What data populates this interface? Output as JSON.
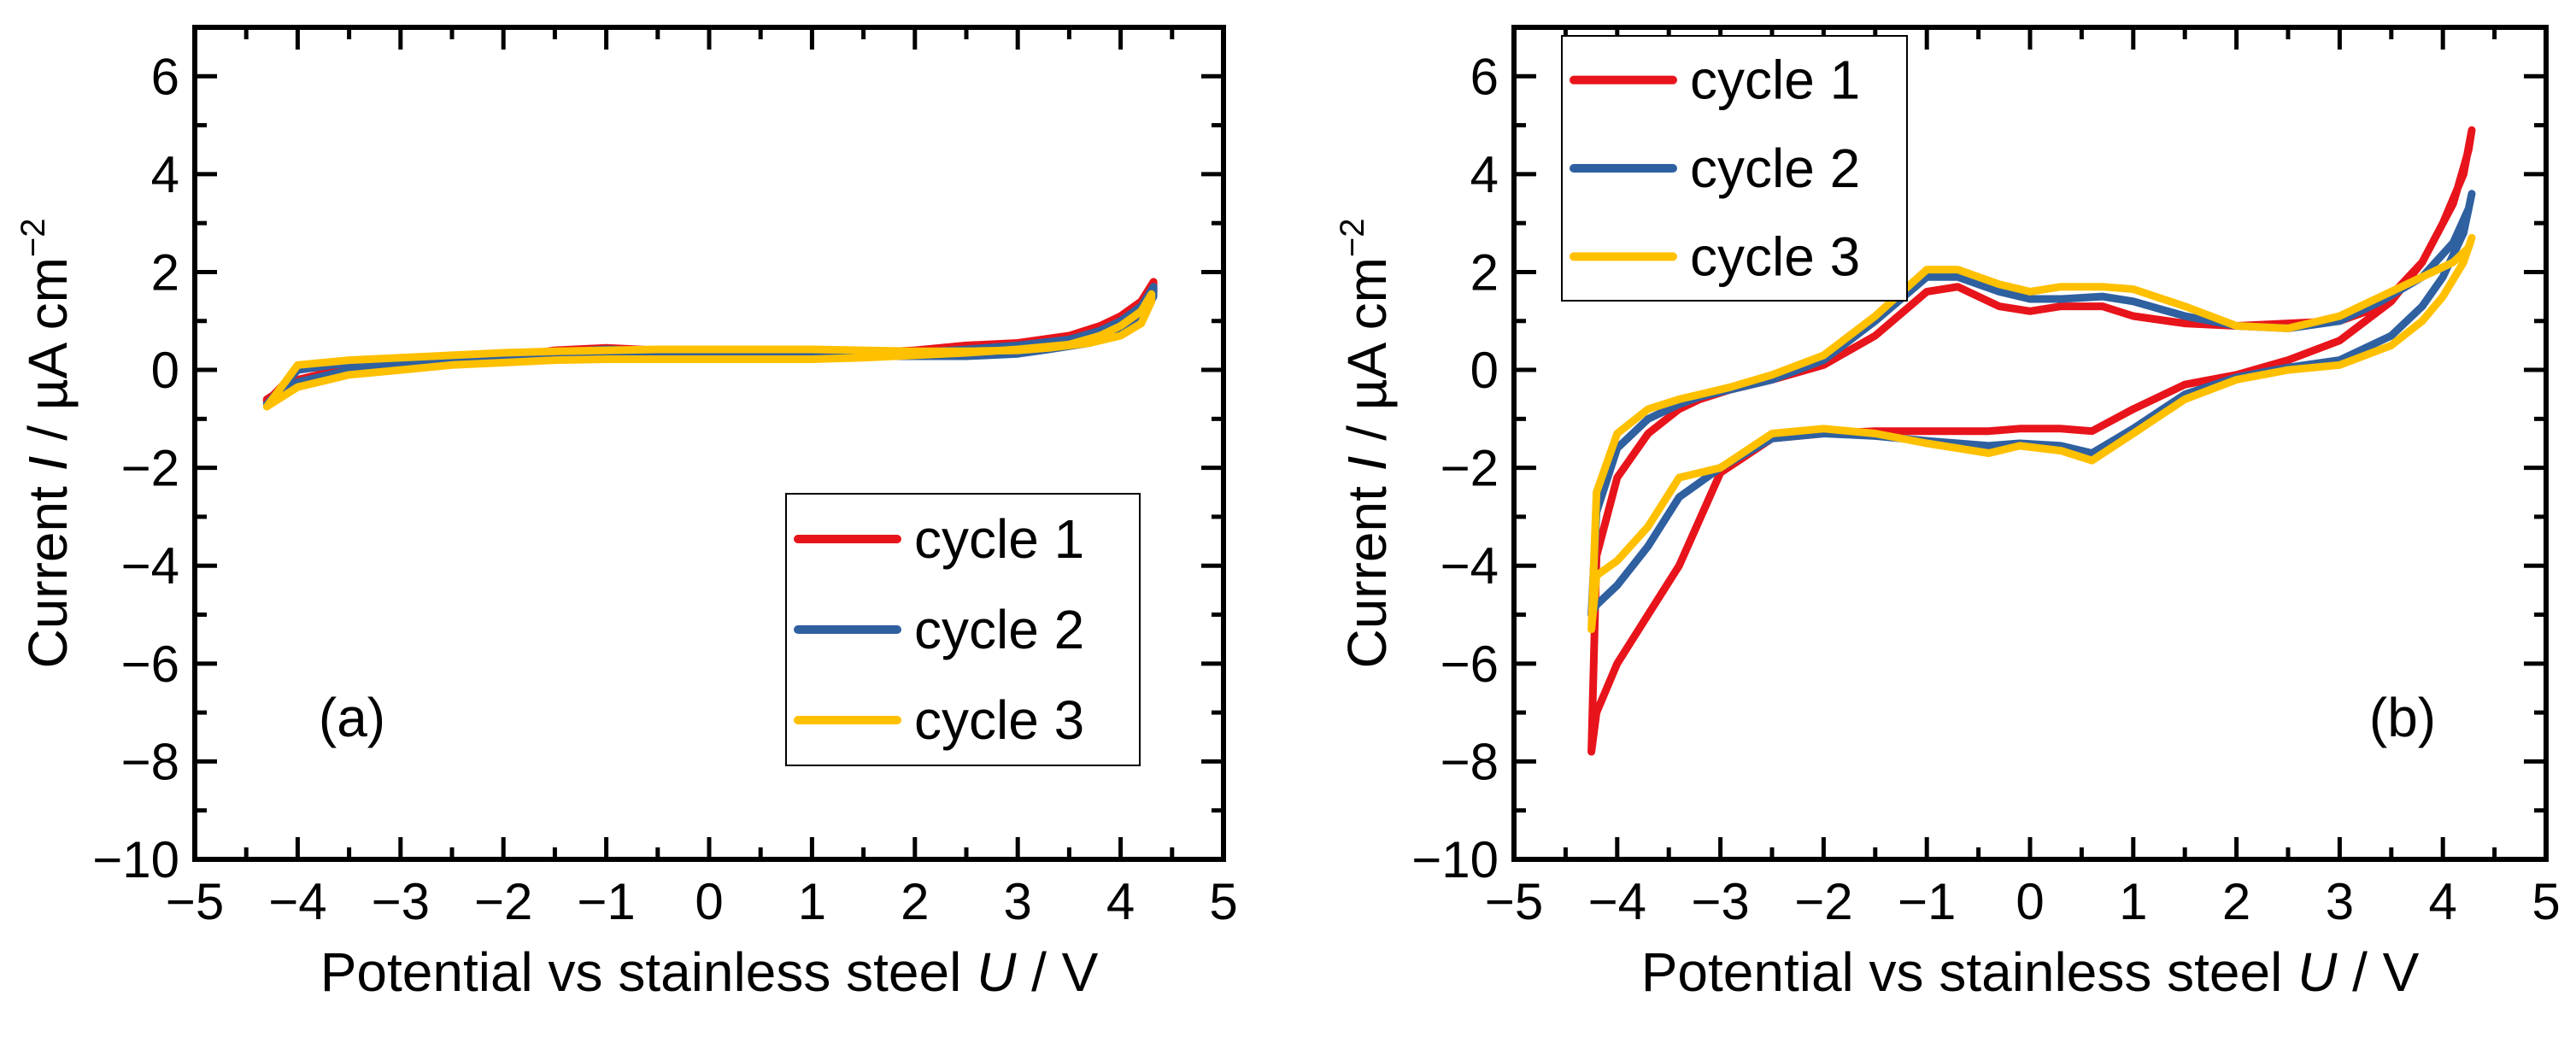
{
  "chart_data": [
    {
      "type": "line",
      "panel": "(a)",
      "xlabel": "Potential vs stainless steel",
      "xlabel_var": "U",
      "xlabel_unit": " / V",
      "ylabel": "Current",
      "ylabel_var": "I",
      "ylabel_unit": " / µA cm",
      "ylabel_exp": "−2",
      "xlim": [
        -5,
        5
      ],
      "ylim": [
        -10,
        7
      ],
      "xticks": [
        -5,
        -4,
        -3,
        -2,
        -1,
        0,
        1,
        2,
        3,
        4,
        5
      ],
      "xtick_labels": [
        "−5",
        "−4",
        "−3",
        "−2",
        "−1",
        "0",
        "1",
        "2",
        "3",
        "4",
        "5"
      ],
      "yticks": [
        -10,
        -8,
        -6,
        -4,
        -2,
        0,
        2,
        4,
        6
      ],
      "ytick_labels": [
        "−10",
        "−8",
        "−6",
        "−4",
        "−2",
        "0",
        "2",
        "4",
        "6"
      ],
      "legend_position": "bottom-right",
      "series": [
        {
          "name": "cycle 1",
          "color": "#e8141b",
          "x": [
            -4.3,
            -4.0,
            -3.5,
            -3.0,
            -2.5,
            -2.0,
            -1.5,
            -1.0,
            -0.5,
            0.0,
            0.5,
            1.0,
            1.5,
            2.0,
            2.5,
            3.0,
            3.5,
            3.8,
            4.0,
            4.2,
            4.32,
            4.32,
            4.2,
            4.0,
            3.7,
            3.3,
            3.0,
            2.5,
            2.0,
            1.5,
            1.0,
            0.5,
            0.0,
            -0.5,
            -1.0,
            -1.5,
            -2.0,
            -2.5,
            -3.0,
            -3.5,
            -4.0,
            -4.3
          ],
          "y": [
            -0.6,
            -0.2,
            0.05,
            0.1,
            0.15,
            0.25,
            0.4,
            0.45,
            0.4,
            0.35,
            0.3,
            0.3,
            0.35,
            0.4,
            0.5,
            0.55,
            0.7,
            0.9,
            1.1,
            1.4,
            1.8,
            1.6,
            1.1,
            0.8,
            0.6,
            0.45,
            0.35,
            0.3,
            0.3,
            0.3,
            0.3,
            0.35,
            0.35,
            0.35,
            0.3,
            0.25,
            0.3,
            0.25,
            0.2,
            0.15,
            0.0,
            -0.65
          ]
        },
        {
          "name": "cycle 2",
          "color": "#2f60a0",
          "x": [
            -4.3,
            -4.0,
            -3.5,
            -3.0,
            -2.5,
            -2.0,
            -1.5,
            -1.0,
            -0.5,
            0.0,
            0.5,
            1.0,
            1.5,
            2.0,
            2.5,
            3.0,
            3.5,
            3.8,
            4.0,
            4.2,
            4.32,
            4.32,
            4.2,
            4.0,
            3.7,
            3.3,
            3.0,
            2.5,
            2.0,
            1.5,
            1.0,
            0.5,
            0.0,
            -0.5,
            -1.0,
            -1.5,
            -2.0,
            -2.5,
            -3.0,
            -3.5,
            -4.0,
            -4.3
          ],
          "y": [
            -0.7,
            -0.25,
            0.0,
            0.05,
            0.15,
            0.25,
            0.35,
            0.42,
            0.38,
            0.33,
            0.28,
            0.28,
            0.3,
            0.35,
            0.42,
            0.5,
            0.62,
            0.8,
            1.0,
            1.3,
            1.7,
            1.5,
            1.0,
            0.75,
            0.55,
            0.42,
            0.33,
            0.28,
            0.28,
            0.28,
            0.3,
            0.33,
            0.33,
            0.33,
            0.3,
            0.25,
            0.28,
            0.25,
            0.2,
            0.15,
            0.0,
            -0.7
          ]
        },
        {
          "name": "cycle 3",
          "color": "#ffc000",
          "x": [
            -4.3,
            -4.0,
            -3.5,
            -3.0,
            -2.5,
            -2.0,
            -1.5,
            -1.0,
            -0.5,
            0.0,
            0.5,
            1.0,
            1.5,
            2.0,
            2.5,
            3.0,
            3.5,
            3.8,
            4.0,
            4.2,
            4.3,
            4.3,
            4.2,
            4.0,
            3.7,
            3.3,
            3.0,
            2.5,
            2.0,
            1.5,
            1.0,
            0.5,
            0.0,
            -0.5,
            -1.0,
            -1.5,
            -2.0,
            -2.5,
            -3.0,
            -3.5,
            -4.0,
            -4.3
          ],
          "y": [
            -0.75,
            -0.35,
            -0.1,
            0.0,
            0.1,
            0.15,
            0.2,
            0.22,
            0.22,
            0.22,
            0.22,
            0.22,
            0.25,
            0.3,
            0.35,
            0.42,
            0.52,
            0.7,
            0.9,
            1.2,
            1.55,
            1.4,
            0.95,
            0.7,
            0.55,
            0.45,
            0.4,
            0.38,
            0.38,
            0.4,
            0.42,
            0.42,
            0.42,
            0.42,
            0.4,
            0.38,
            0.35,
            0.3,
            0.25,
            0.2,
            0.1,
            -0.75
          ]
        }
      ]
    },
    {
      "type": "line",
      "panel": "(b)",
      "xlabel": "Potential vs stainless steel",
      "xlabel_var": "U",
      "xlabel_unit": " / V",
      "ylabel": "Current",
      "ylabel_var": "I",
      "ylabel_unit": " / µA cm",
      "ylabel_exp": "−2",
      "xlim": [
        -5,
        5
      ],
      "ylim": [
        -10,
        7
      ],
      "xticks": [
        -5,
        -4,
        -3,
        -2,
        -1,
        0,
        1,
        2,
        3,
        4,
        5
      ],
      "xtick_labels": [
        "−5",
        "−4",
        "−3",
        "−2",
        "−1",
        "0",
        "1",
        "2",
        "3",
        "4",
        "5"
      ],
      "yticks": [
        -10,
        -8,
        -6,
        -4,
        -2,
        0,
        2,
        4,
        6
      ],
      "ytick_labels": [
        "−10",
        "−8",
        "−6",
        "−4",
        "−2",
        "0",
        "2",
        "4",
        "6"
      ],
      "legend_position": "top-left",
      "series": [
        {
          "name": "cycle 1",
          "color": "#e8141b",
          "x": [
            -4.25,
            -4.2,
            -4.0,
            -3.7,
            -3.4,
            -3.0,
            -2.5,
            -2.0,
            -1.5,
            -1.0,
            -0.7,
            -0.4,
            -0.1,
            0.3,
            0.6,
            1.0,
            1.5,
            2.0,
            2.5,
            3.0,
            3.5,
            3.8,
            4.0,
            4.2,
            4.28,
            4.25,
            4.1,
            3.8,
            3.4,
            3.0,
            2.5,
            2.0,
            1.5,
            1.0,
            0.7,
            0.3,
            0.0,
            -0.3,
            -0.7,
            -1.0,
            -1.5,
            -2.0,
            -2.5,
            -2.9,
            -3.2,
            -3.4,
            -3.7,
            -4.0,
            -4.2,
            -4.25
          ],
          "y": [
            -7.8,
            -7.0,
            -6.0,
            -5.0,
            -4.0,
            -2.1,
            -1.4,
            -1.3,
            -1.25,
            -1.25,
            -1.25,
            -1.25,
            -1.2,
            -1.2,
            -1.25,
            -0.8,
            -0.3,
            -0.1,
            0.2,
            0.6,
            1.4,
            2.2,
            3.0,
            4.0,
            4.9,
            4.5,
            3.4,
            2.2,
            1.3,
            1.0,
            0.95,
            0.9,
            0.95,
            1.1,
            1.3,
            1.3,
            1.2,
            1.3,
            1.7,
            1.6,
            0.7,
            0.1,
            -0.2,
            -0.4,
            -0.6,
            -0.8,
            -1.3,
            -2.2,
            -3.8,
            -7.8
          ]
        },
        {
          "name": "cycle 2",
          "color": "#2f60a0",
          "x": [
            -4.25,
            -4.2,
            -4.0,
            -3.7,
            -3.4,
            -3.0,
            -2.5,
            -2.0,
            -1.5,
            -1.0,
            -0.7,
            -0.4,
            -0.1,
            0.3,
            0.6,
            1.0,
            1.5,
            2.0,
            2.5,
            3.0,
            3.5,
            3.8,
            4.0,
            4.2,
            4.28,
            4.25,
            4.1,
            3.8,
            3.4,
            3.0,
            2.5,
            2.0,
            1.5,
            1.0,
            0.7,
            0.3,
            0.0,
            -0.3,
            -0.7,
            -1.0,
            -1.5,
            -2.0,
            -2.5,
            -2.9,
            -3.2,
            -3.4,
            -3.7,
            -4.0,
            -4.2,
            -4.25
          ],
          "y": [
            -5.0,
            -4.8,
            -4.4,
            -3.6,
            -2.6,
            -2.0,
            -1.4,
            -1.3,
            -1.35,
            -1.45,
            -1.5,
            -1.55,
            -1.5,
            -1.55,
            -1.7,
            -1.2,
            -0.5,
            -0.15,
            0.05,
            0.2,
            0.7,
            1.3,
            1.9,
            2.8,
            3.6,
            3.3,
            2.6,
            1.9,
            1.4,
            1.0,
            0.85,
            0.9,
            1.1,
            1.4,
            1.5,
            1.45,
            1.45,
            1.6,
            1.9,
            1.9,
            1.0,
            0.2,
            -0.2,
            -0.4,
            -0.55,
            -0.7,
            -1.0,
            -1.6,
            -2.9,
            -5.0
          ]
        },
        {
          "name": "cycle 3",
          "color": "#ffc000",
          "x": [
            -4.25,
            -4.2,
            -4.0,
            -3.7,
            -3.4,
            -3.0,
            -2.5,
            -2.0,
            -1.5,
            -1.0,
            -0.7,
            -0.4,
            -0.1,
            0.3,
            0.6,
            1.0,
            1.5,
            2.0,
            2.5,
            3.0,
            3.5,
            3.8,
            4.0,
            4.2,
            4.28,
            4.25,
            4.1,
            3.8,
            3.4,
            3.0,
            2.5,
            2.0,
            1.5,
            1.0,
            0.7,
            0.3,
            0.0,
            -0.3,
            -0.7,
            -1.0,
            -1.5,
            -2.0,
            -2.5,
            -2.9,
            -3.2,
            -3.4,
            -3.7,
            -4.0,
            -4.2,
            -4.25
          ],
          "y": [
            -5.3,
            -4.2,
            -3.9,
            -3.2,
            -2.2,
            -2.0,
            -1.3,
            -1.2,
            -1.3,
            -1.5,
            -1.6,
            -1.7,
            -1.55,
            -1.65,
            -1.85,
            -1.3,
            -0.6,
            -0.2,
            0.0,
            0.1,
            0.5,
            1.0,
            1.5,
            2.2,
            2.7,
            2.5,
            2.2,
            1.9,
            1.5,
            1.1,
            0.85,
            0.9,
            1.3,
            1.65,
            1.7,
            1.7,
            1.6,
            1.75,
            2.05,
            2.05,
            1.1,
            0.3,
            -0.1,
            -0.35,
            -0.5,
            -0.6,
            -0.8,
            -1.3,
            -2.5,
            -5.3
          ]
        }
      ]
    }
  ]
}
